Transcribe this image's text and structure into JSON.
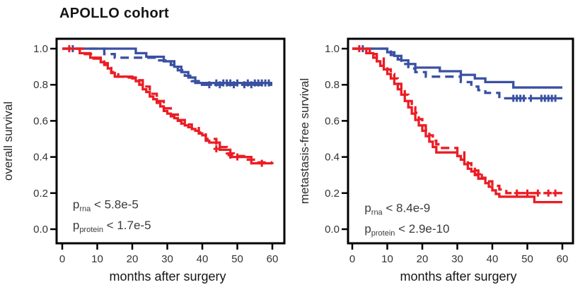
{
  "figure": {
    "title": "APOLLO cohort"
  },
  "colors": {
    "blue": "#3a50a2",
    "red": "#ec1c24",
    "axis": "#000000",
    "text": "#3a3a3a"
  },
  "chart_data": [
    {
      "type": "line",
      "subtype": "kaplan-meier-step",
      "title": "",
      "xlabel": "months after surgery",
      "ylabel": "overall survival",
      "xlim": [
        0,
        60
      ],
      "ylim": [
        0.0,
        1.0
      ],
      "grid": false,
      "legend": "none",
      "x_ticks": [
        {
          "label": "0",
          "value": 0
        },
        {
          "label": "10",
          "value": 10
        },
        {
          "label": "20",
          "value": 20
        },
        {
          "label": "30",
          "value": 30
        },
        {
          "label": "40",
          "value": 40
        },
        {
          "label": "50",
          "value": 50
        },
        {
          "label": "60",
          "value": 60
        }
      ],
      "y_ticks": [
        {
          "label": "1.0",
          "value": 1.0
        },
        {
          "label": "0.8",
          "value": 0.8
        },
        {
          "label": "0.6",
          "value": 0.6
        },
        {
          "label": "0.4",
          "value": 0.4
        },
        {
          "label": "0.2",
          "value": 0.2
        },
        {
          "label": "0.0",
          "value": 0.0
        }
      ],
      "annotations": [
        {
          "base": "p",
          "sub": "rna",
          "rest": " < 5.8e-5",
          "at": [
            3,
            0.115
          ]
        },
        {
          "base": "p",
          "sub": "protein",
          "rest": " < 1.7e-5",
          "at": [
            3,
            0.0
          ]
        }
      ],
      "series": [
        {
          "name": "blue-solid",
          "color": "blue",
          "dash": false,
          "points": [
            [
              0,
              1
            ],
            [
              21,
              0.975
            ],
            [
              24,
              0.955
            ],
            [
              29,
              0.93
            ],
            [
              32,
              0.9
            ],
            [
              34,
              0.87
            ],
            [
              36,
              0.84
            ],
            [
              38,
              0.81
            ],
            [
              60,
              0.81
            ]
          ],
          "censors": [
            [
              3,
              1
            ],
            [
              44,
              0.81
            ],
            [
              46,
              0.81
            ],
            [
              47,
              0.81
            ],
            [
              48,
              0.81
            ],
            [
              50,
              0.81
            ],
            [
              53,
              0.81
            ],
            [
              55,
              0.81
            ],
            [
              56,
              0.81
            ],
            [
              57,
              0.81
            ],
            [
              58,
              0.81
            ],
            [
              59,
              0.81
            ]
          ]
        },
        {
          "name": "blue-dashed",
          "color": "blue",
          "dash": true,
          "points": [
            [
              0,
              1
            ],
            [
              12,
              0.97
            ],
            [
              15,
              0.95
            ],
            [
              27,
              0.935
            ],
            [
              31,
              0.91
            ],
            [
              33,
              0.88
            ],
            [
              35,
              0.85
            ],
            [
              37,
              0.82
            ],
            [
              39,
              0.8
            ],
            [
              60,
              0.8
            ]
          ],
          "censors": [
            [
              42,
              0.8
            ],
            [
              45,
              0.8
            ],
            [
              49,
              0.8
            ],
            [
              52,
              0.8
            ],
            [
              54,
              0.8
            ]
          ]
        },
        {
          "name": "red-solid",
          "color": "red",
          "dash": false,
          "points": [
            [
              0,
              1
            ],
            [
              5,
              0.975
            ],
            [
              8,
              0.95
            ],
            [
              11,
              0.925
            ],
            [
              12,
              0.91
            ],
            [
              13,
              0.89
            ],
            [
              14,
              0.865
            ],
            [
              15,
              0.845
            ],
            [
              20,
              0.835
            ],
            [
              21,
              0.82
            ],
            [
              22,
              0.8
            ],
            [
              23,
              0.775
            ],
            [
              24,
              0.76
            ],
            [
              25,
              0.735
            ],
            [
              26,
              0.72
            ],
            [
              27,
              0.7
            ],
            [
              28,
              0.68
            ],
            [
              29,
              0.655
            ],
            [
              30,
              0.64
            ],
            [
              31,
              0.625
            ],
            [
              32,
              0.615
            ],
            [
              33,
              0.6
            ],
            [
              34,
              0.585
            ],
            [
              35,
              0.575
            ],
            [
              36,
              0.565
            ],
            [
              37,
              0.555
            ],
            [
              38,
              0.545
            ],
            [
              39,
              0.53
            ],
            [
              40,
              0.52
            ],
            [
              41,
              0.49
            ],
            [
              42,
              0.48
            ],
            [
              45,
              0.44
            ],
            [
              48,
              0.4
            ],
            [
              54,
              0.365
            ],
            [
              60,
              0.36
            ]
          ],
          "censors": [
            [
              2,
              1
            ],
            [
              44,
              0.445
            ],
            [
              50,
              0.4
            ],
            [
              57,
              0.365
            ]
          ]
        },
        {
          "name": "red-dashed",
          "color": "red",
          "dash": true,
          "points": [
            [
              0,
              1
            ],
            [
              6,
              0.97
            ],
            [
              9,
              0.945
            ],
            [
              12,
              0.92
            ],
            [
              13,
              0.9
            ],
            [
              14,
              0.87
            ],
            [
              16,
              0.845
            ],
            [
              19,
              0.84
            ],
            [
              21,
              0.825
            ],
            [
              23,
              0.79
            ],
            [
              25,
              0.75
            ],
            [
              27,
              0.71
            ],
            [
              29,
              0.67
            ],
            [
              31,
              0.635
            ],
            [
              33,
              0.605
            ],
            [
              35,
              0.58
            ],
            [
              37,
              0.56
            ],
            [
              39,
              0.535
            ],
            [
              41,
              0.5
            ],
            [
              44,
              0.455
            ],
            [
              47,
              0.42
            ],
            [
              49,
              0.405
            ],
            [
              53,
              0.385
            ],
            [
              56,
              0.37
            ],
            [
              60,
              0.37
            ]
          ],
          "censors": [
            [
              48,
              0.41
            ]
          ]
        }
      ]
    },
    {
      "type": "line",
      "subtype": "kaplan-meier-step",
      "title": "",
      "xlabel": "months after surgery",
      "ylabel": "metastasis-free survival",
      "xlim": [
        0,
        60
      ],
      "ylim": [
        0.0,
        1.0
      ],
      "grid": false,
      "legend": "none",
      "x_ticks": [
        {
          "label": "0",
          "value": 0
        },
        {
          "label": "10",
          "value": 10
        },
        {
          "label": "20",
          "value": 20
        },
        {
          "label": "30",
          "value": 30
        },
        {
          "label": "40",
          "value": 40
        },
        {
          "label": "50",
          "value": 50
        },
        {
          "label": "60",
          "value": 60
        }
      ],
      "y_ticks": [
        {
          "label": "1.0",
          "value": 1.0
        },
        {
          "label": "0.8",
          "value": 0.8
        },
        {
          "label": "0.6",
          "value": 0.6
        },
        {
          "label": "0.4",
          "value": 0.4
        },
        {
          "label": "0.2",
          "value": 0.2
        },
        {
          "label": "0.0",
          "value": 0.0
        }
      ],
      "annotations": [
        {
          "base": "p",
          "sub": "rna",
          "rest": " < 8.4e-9",
          "at": [
            3.5,
            0.095
          ]
        },
        {
          "base": "p",
          "sub": "protein",
          "rest": " < 2.9e-10",
          "at": [
            3.5,
            -0.02
          ]
        }
      ],
      "series": [
        {
          "name": "blue-solid",
          "color": "blue",
          "dash": false,
          "points": [
            [
              0,
              1
            ],
            [
              10,
              0.98
            ],
            [
              12,
              0.96
            ],
            [
              14,
              0.935
            ],
            [
              16,
              0.915
            ],
            [
              18,
              0.895
            ],
            [
              25,
              0.875
            ],
            [
              31,
              0.855
            ],
            [
              35,
              0.835
            ],
            [
              38,
              0.815
            ],
            [
              46,
              0.785
            ],
            [
              60,
              0.785
            ]
          ],
          "censors": [
            [
              3,
              1
            ]
          ]
        },
        {
          "name": "blue-dashed",
          "color": "blue",
          "dash": true,
          "points": [
            [
              0,
              1
            ],
            [
              11,
              0.965
            ],
            [
              13,
              0.94
            ],
            [
              14,
              0.915
            ],
            [
              16,
              0.89
            ],
            [
              18,
              0.87
            ],
            [
              21,
              0.845
            ],
            [
              31,
              0.815
            ],
            [
              34,
              0.79
            ],
            [
              36,
              0.77
            ],
            [
              38,
              0.755
            ],
            [
              42,
              0.725
            ],
            [
              60,
              0.725
            ]
          ],
          "censors": [
            [
              46,
              0.725
            ],
            [
              47,
              0.725
            ],
            [
              48,
              0.725
            ],
            [
              49,
              0.725
            ],
            [
              51,
              0.725
            ],
            [
              54,
              0.725
            ],
            [
              55,
              0.725
            ],
            [
              56,
              0.725
            ],
            [
              57,
              0.725
            ],
            [
              58,
              0.725
            ]
          ]
        },
        {
          "name": "red-solid",
          "color": "red",
          "dash": false,
          "points": [
            [
              0,
              1
            ],
            [
              4,
              0.975
            ],
            [
              6,
              0.95
            ],
            [
              7,
              0.93
            ],
            [
              8,
              0.905
            ],
            [
              9,
              0.885
            ],
            [
              10,
              0.86
            ],
            [
              11,
              0.835
            ],
            [
              12,
              0.805
            ],
            [
              13,
              0.775
            ],
            [
              14,
              0.745
            ],
            [
              15,
              0.71
            ],
            [
              16,
              0.675
            ],
            [
              17,
              0.64
            ],
            [
              18,
              0.605
            ],
            [
              19,
              0.575
            ],
            [
              20,
              0.545
            ],
            [
              21,
              0.515
            ],
            [
              22,
              0.485
            ],
            [
              23,
              0.455
            ],
            [
              24,
              0.425
            ],
            [
              30,
              0.405
            ],
            [
              31,
              0.385
            ],
            [
              32,
              0.36
            ],
            [
              33,
              0.335
            ],
            [
              34,
              0.32
            ],
            [
              35,
              0.3
            ],
            [
              36,
              0.28
            ],
            [
              38,
              0.255
            ],
            [
              39,
              0.235
            ],
            [
              40,
              0.215
            ],
            [
              41,
              0.195
            ],
            [
              42,
              0.18
            ],
            [
              52,
              0.15
            ],
            [
              60,
              0.15
            ]
          ],
          "censors": [
            [
              2,
              1
            ]
          ]
        },
        {
          "name": "red-dashed",
          "color": "red",
          "dash": true,
          "points": [
            [
              0,
              1
            ],
            [
              5,
              0.97
            ],
            [
              7,
              0.945
            ],
            [
              9,
              0.91
            ],
            [
              10,
              0.885
            ],
            [
              11,
              0.86
            ],
            [
              12,
              0.835
            ],
            [
              13,
              0.805
            ],
            [
              14,
              0.775
            ],
            [
              15,
              0.745
            ],
            [
              16,
              0.71
            ],
            [
              17,
              0.675
            ],
            [
              18,
              0.645
            ],
            [
              19,
              0.61
            ],
            [
              20,
              0.575
            ],
            [
              21,
              0.55
            ],
            [
              22,
              0.52
            ],
            [
              23,
              0.49
            ],
            [
              24,
              0.47
            ],
            [
              25,
              0.45
            ],
            [
              30,
              0.425
            ],
            [
              32,
              0.39
            ],
            [
              33,
              0.365
            ],
            [
              34,
              0.345
            ],
            [
              35,
              0.325
            ],
            [
              36,
              0.3
            ],
            [
              37,
              0.285
            ],
            [
              38,
              0.265
            ],
            [
              40,
              0.24
            ],
            [
              42,
              0.22
            ],
            [
              44,
              0.2
            ],
            [
              60,
              0.2
            ]
          ],
          "censors": [
            [
              36,
              0.305
            ],
            [
              47,
              0.2
            ],
            [
              50,
              0.2
            ],
            [
              53,
              0.2
            ],
            [
              56,
              0.2
            ],
            [
              58,
              0.2
            ]
          ]
        }
      ]
    }
  ]
}
